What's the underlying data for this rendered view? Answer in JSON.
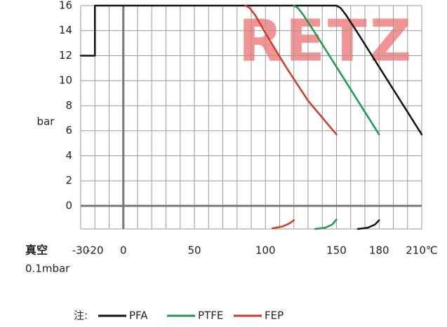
{
  "chart_data": {
    "type": "line",
    "watermark": "RETZ",
    "ylabel": "bar",
    "xlabel_vacuum": "真空",
    "xlabel_vacuum_value": "0.1mbar",
    "legend_prefix": "注:",
    "xlim": [
      -30,
      210
    ],
    "ylim": [
      -1.85,
      16
    ],
    "xticks": [
      -30,
      -20,
      0,
      50,
      100,
      150,
      180,
      {
        "value": 210,
        "label": "210℃"
      }
    ],
    "xgrid": [
      -30,
      -20,
      -10,
      0,
      10,
      20,
      30,
      40,
      50,
      60,
      70,
      80,
      90,
      100,
      110,
      120,
      130,
      140,
      150,
      160,
      170,
      180,
      190,
      200,
      210
    ],
    "yticks": [
      0,
      2,
      4,
      6,
      8,
      10,
      12,
      14,
      16
    ],
    "grid": true,
    "series": [
      {
        "name": "PFA",
        "color": "#111111",
        "x": [
          -30,
          -20,
          -20,
          150,
          153,
          157,
          165,
          180,
          195,
          210,
          null,
          165,
          172,
          177,
          180
        ],
        "values": [
          12,
          12,
          16,
          16,
          15.8,
          15.2,
          13.8,
          11.1,
          8.4,
          5.7,
          null,
          -1.85,
          -1.75,
          -1.5,
          -1.15
        ]
      },
      {
        "name": "PTFE",
        "color": "#1a9a4a",
        "x": [
          120,
          123,
          127,
          135,
          150,
          165,
          180,
          null,
          135,
          142,
          147,
          150
        ],
        "values": [
          16,
          15.8,
          15.2,
          13.8,
          11.1,
          8.4,
          5.7,
          null,
          -1.85,
          -1.75,
          -1.5,
          -1.1
        ]
      },
      {
        "name": "FEP",
        "color": "#d03a2a",
        "x": [
          86,
          89,
          93,
          100,
          115,
          130,
          150,
          null,
          105,
          112,
          117,
          120
        ],
        "values": [
          16,
          15.8,
          15.2,
          13.8,
          11.0,
          8.4,
          5.7,
          null,
          -1.8,
          -1.65,
          -1.4,
          -1.15
        ]
      }
    ]
  }
}
